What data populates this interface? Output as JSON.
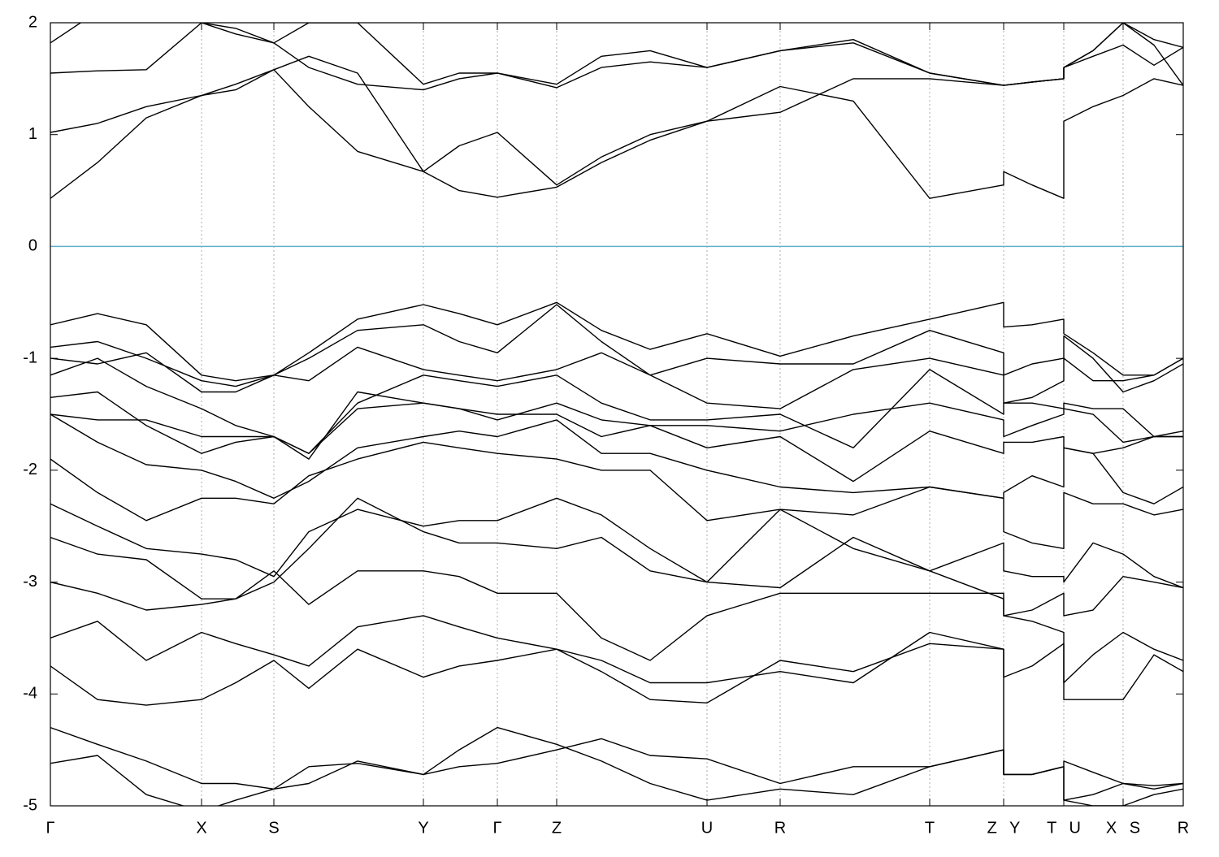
{
  "chart_data": {
    "type": "line",
    "x": [
      0,
      58,
      118,
      186,
      228,
      275,
      318,
      378,
      459,
      503,
      550,
      623,
      678,
      738,
      808,
      898,
      988,
      1082,
      1173,
      1173,
      1208,
      1247,
      1247,
      1283,
      1320,
      1358,
      1394
    ],
    "xlim": [
      0,
      1394
    ],
    "xticks": [
      {
        "value": 0,
        "label": "Γ"
      },
      {
        "value": 186,
        "label": "X"
      },
      {
        "value": 275,
        "label": "S"
      },
      {
        "value": 459,
        "label": "Y"
      },
      {
        "value": 550,
        "label": "Γ"
      },
      {
        "value": 623,
        "label": "Z"
      },
      {
        "value": 808,
        "label": "U"
      },
      {
        "value": 898,
        "label": "R"
      },
      {
        "value": 1082,
        "label": "T"
      },
      {
        "value": 1173,
        "label": "Z Y"
      },
      {
        "value": 1247,
        "label": "T U"
      },
      {
        "value": 1320,
        "label": "X S"
      },
      {
        "value": 1394,
        "label": "R"
      }
    ],
    "ylim": [
      -5,
      2
    ],
    "yticks": [
      -5,
      -4,
      -3,
      -2,
      -1,
      0,
      1,
      2
    ],
    "grid": true,
    "color": "#000000",
    "hlines": [
      {
        "y": 0,
        "color": "#5fb0c8"
      }
    ],
    "series": [
      {
        "values": [
          0.43,
          0.75,
          1.15,
          1.35,
          1.45,
          1.58,
          1.25,
          0.85,
          0.67,
          0.5,
          0.44,
          0.53,
          0.75,
          0.95,
          1.12,
          1.43,
          1.3,
          0.43,
          0.55,
          0.67,
          0.55,
          0.43,
          1.12,
          1.25,
          1.35,
          1.5,
          1.44
        ]
      },
      {
        "values": [
          1.02,
          1.1,
          1.25,
          1.35,
          1.4,
          1.58,
          1.7,
          1.55,
          0.67,
          0.9,
          1.02,
          0.55,
          0.8,
          1.0,
          1.12,
          1.2,
          1.5,
          1.5,
          1.44,
          1.44,
          1.47,
          1.5,
          1.6,
          1.75,
          2.0,
          1.85,
          1.78
        ]
      },
      {
        "values": [
          1.55,
          1.57,
          1.58,
          2.0,
          1.95,
          1.82,
          1.6,
          1.45,
          1.4,
          1.5,
          1.55,
          1.45,
          1.7,
          1.75,
          1.6,
          1.75,
          1.82,
          1.55,
          1.44,
          1.44,
          1.47,
          1.5,
          1.6,
          1.7,
          1.8,
          1.62,
          1.78
        ]
      },
      {
        "values": [
          1.82,
          2.1,
          2.1,
          2.0,
          1.9,
          1.82,
          2.0,
          2.0,
          1.45,
          1.55,
          1.55,
          1.42,
          1.6,
          1.65,
          1.6,
          1.75,
          1.85,
          1.55,
          1.44,
          1.44,
          1.47,
          1.5,
          1.6,
          1.75,
          2.0,
          1.8,
          1.44
        ]
      },
      {
        "values": [
          -0.7,
          -0.6,
          -0.7,
          -1.15,
          -1.2,
          -1.15,
          -0.95,
          -0.65,
          -0.52,
          -0.6,
          -0.7,
          -0.5,
          -0.75,
          -0.92,
          -0.78,
          -0.98,
          -0.8,
          -0.65,
          -0.5,
          -0.72,
          -0.7,
          -0.65,
          -0.78,
          -0.95,
          -1.15,
          -1.15,
          -1.0
        ]
      },
      {
        "values": [
          -0.9,
          -0.85,
          -1.0,
          -1.2,
          -1.25,
          -1.15,
          -1.0,
          -0.75,
          -0.7,
          -0.85,
          -0.95,
          -0.52,
          -0.85,
          -1.15,
          -1.0,
          -1.05,
          -1.05,
          -0.75,
          -0.95,
          -1.15,
          -1.05,
          -1.0,
          -0.8,
          -1.0,
          -1.3,
          -1.2,
          -1.05
        ]
      },
      {
        "values": [
          -1.0,
          -1.05,
          -0.95,
          -1.3,
          -1.3,
          -1.15,
          -1.2,
          -0.9,
          -1.1,
          -1.15,
          -1.2,
          -1.1,
          -0.95,
          -1.15,
          -1.4,
          -1.45,
          -1.1,
          -1.0,
          -1.15,
          -1.4,
          -1.35,
          -1.2,
          -1.0,
          -1.2,
          -1.2,
          -1.15,
          -1.0
        ]
      },
      {
        "values": [
          -1.15,
          -1.0,
          -1.25,
          -1.45,
          -1.6,
          -1.7,
          -1.85,
          -1.4,
          -1.15,
          -1.2,
          -1.25,
          -1.15,
          -1.4,
          -1.55,
          -1.55,
          -1.5,
          -1.8,
          -1.1,
          -1.5,
          -1.4,
          -1.4,
          -1.45,
          -1.4,
          -1.45,
          -1.45,
          -1.7,
          -1.65
        ]
      },
      {
        "values": [
          -1.35,
          -1.3,
          -1.6,
          -1.85,
          -1.75,
          -1.7,
          -1.9,
          -1.3,
          -1.4,
          -1.45,
          -1.55,
          -1.4,
          -1.55,
          -1.6,
          -1.6,
          -1.65,
          -1.5,
          -1.4,
          -1.55,
          -1.7,
          -1.6,
          -1.5,
          -1.45,
          -1.5,
          -1.75,
          -1.7,
          -1.7
        ]
      },
      {
        "values": [
          -1.5,
          -1.55,
          -1.55,
          -1.7,
          -1.7,
          -1.7,
          -1.85,
          -1.45,
          -1.4,
          -1.45,
          -1.5,
          -1.5,
          -1.7,
          -1.6,
          -1.8,
          -1.7,
          -2.1,
          -1.65,
          -1.85,
          -1.75,
          -1.75,
          -1.7,
          -1.8,
          -1.85,
          -1.8,
          -1.7,
          -1.7
        ]
      },
      {
        "values": [
          -1.5,
          -1.75,
          -1.95,
          -2.0,
          -2.1,
          -2.25,
          -2.1,
          -1.8,
          -1.7,
          -1.65,
          -1.7,
          -1.55,
          -1.85,
          -1.85,
          -2.0,
          -2.15,
          -2.2,
          -2.15,
          -2.25,
          -2.2,
          -2.05,
          -2.15,
          -1.8,
          -1.85,
          -2.2,
          -2.3,
          -2.15
        ]
      },
      {
        "values": [
          -1.9,
          -2.2,
          -2.45,
          -2.25,
          -2.25,
          -2.3,
          -2.05,
          -1.9,
          -1.75,
          -1.8,
          -1.85,
          -1.9,
          -2.0,
          -2.0,
          -2.45,
          -2.35,
          -2.4,
          -2.15,
          -2.25,
          -2.55,
          -2.65,
          -2.7,
          -2.2,
          -2.3,
          -2.3,
          -2.4,
          -2.35
        ]
      },
      {
        "values": [
          -2.3,
          -2.5,
          -2.7,
          -2.75,
          -2.8,
          -2.95,
          -2.55,
          -2.35,
          -2.5,
          -2.45,
          -2.45,
          -2.25,
          -2.4,
          -2.7,
          -3.0,
          -2.35,
          -2.7,
          -2.9,
          -2.65,
          -2.9,
          -2.95,
          -2.95,
          -3.0,
          -2.65,
          -2.75,
          -2.95,
          -3.05
        ]
      },
      {
        "values": [
          -2.6,
          -2.75,
          -2.8,
          -3.15,
          -3.15,
          -3.0,
          -2.7,
          -2.25,
          -2.55,
          -2.65,
          -2.65,
          -2.7,
          -2.6,
          -2.9,
          -3.0,
          -3.05,
          -2.6,
          -2.9,
          -3.15,
          -3.3,
          -3.25,
          -3.1,
          -3.3,
          -3.25,
          -2.95,
          -3.0,
          -3.05
        ]
      },
      {
        "values": [
          -3.0,
          -3.1,
          -3.25,
          -3.2,
          -3.15,
          -2.9,
          -3.2,
          -2.9,
          -2.9,
          -2.95,
          -3.1,
          -3.1,
          -3.5,
          -3.7,
          -3.3,
          -3.1,
          -3.1,
          -3.1,
          -3.1,
          -3.3,
          -3.35,
          -3.45,
          -3.9,
          -3.65,
          -3.45,
          -3.6,
          -3.7
        ]
      },
      {
        "values": [
          -3.5,
          -3.35,
          -3.7,
          -3.45,
          -3.55,
          -3.65,
          -3.75,
          -3.4,
          -3.3,
          -3.4,
          -3.5,
          -3.6,
          -3.7,
          -3.9,
          -3.9,
          -3.8,
          -3.9,
          -3.45,
          -3.6,
          -3.85,
          -3.75,
          -3.55,
          -4.05,
          -4.05,
          -4.05,
          -3.65,
          -3.8
        ]
      },
      {
        "values": [
          -3.75,
          -4.05,
          -4.1,
          -4.05,
          -3.9,
          -3.7,
          -3.95,
          -3.6,
          -3.85,
          -3.75,
          -3.7,
          -3.6,
          -3.8,
          -4.05,
          -4.08,
          -3.7,
          -3.8,
          -3.55,
          -3.6,
          -4.72,
          -4.72,
          -4.65,
          -4.6,
          -4.7,
          -4.8,
          -4.85,
          -4.8
        ]
      },
      {
        "values": [
          -4.3,
          -4.45,
          -4.6,
          -4.8,
          -4.8,
          -4.85,
          -4.8,
          -4.6,
          -4.72,
          -4.65,
          -4.62,
          -4.5,
          -4.4,
          -4.55,
          -4.58,
          -4.8,
          -4.65,
          -4.65,
          -4.5,
          -4.72,
          -4.72,
          -4.65,
          -4.95,
          -4.9,
          -4.8,
          -4.82,
          -4.8
        ]
      },
      {
        "values": [
          -4.62,
          -4.55,
          -4.9,
          -5.05,
          -4.95,
          -4.85,
          -4.65,
          -4.62,
          -4.72,
          -4.5,
          -4.3,
          -4.45,
          -4.6,
          -4.8,
          -4.95,
          -4.85,
          -4.9,
          -4.65,
          -4.5,
          -4.72,
          -4.72,
          -4.65,
          -4.95,
          -5.0,
          -5.0,
          -4.9,
          -4.85
        ]
      }
    ]
  }
}
